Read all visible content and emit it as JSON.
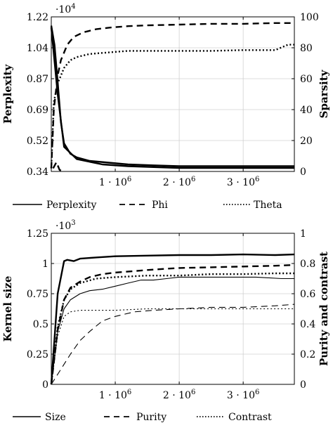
{
  "chart_data": [
    {
      "type": "line",
      "multiplier_label": "·10",
      "multiplier_exp": "4",
      "ylabel": "Perplexity",
      "y2label": "Sparsity",
      "ylim": [
        0.34,
        1.22
      ],
      "y2lim": [
        0,
        100
      ],
      "xlim": [
        0,
        3800000
      ],
      "yticks": [
        "0.34",
        "0.52",
        "0.69",
        "0.87",
        "1.04",
        "1.22"
      ],
      "y2ticks": [
        "0",
        "20",
        "40",
        "60",
        "80",
        "100"
      ],
      "xticks": [
        {
          "label": "1 · 10",
          "exp": "6",
          "v": 1000000
        },
        {
          "label": "2 · 10",
          "exp": "6",
          "v": 2000000
        },
        {
          "label": "3 · 10",
          "exp": "6",
          "v": 3000000
        }
      ],
      "grid": true,
      "series": [
        {
          "name": "Perplexity",
          "style": "solid",
          "axis": "left",
          "x": [
            0,
            50000,
            100000,
            150000,
            200000,
            300000,
            400000,
            600000,
            900000,
            1200000,
            1600000,
            2000000,
            2500000,
            3000000,
            3500000,
            3800000
          ],
          "y": [
            1.17,
            1.06,
            0.85,
            0.62,
            0.5,
            0.44,
            0.42,
            0.4,
            0.39,
            0.38,
            0.375,
            0.37,
            0.37,
            0.37,
            0.37,
            0.37
          ]
        },
        {
          "name": "Phi",
          "style": "dashed",
          "axis": "right",
          "x": [
            0,
            40000,
            100000,
            150000,
            250000,
            350000,
            500000,
            700000,
            900000,
            1200000,
            1500000,
            2000000,
            2500000,
            3000000,
            3500000,
            3800000
          ],
          "y": [
            2,
            40,
            62,
            72,
            82,
            87,
            90,
            92,
            93,
            94,
            94.5,
            95,
            95.5,
            95.5,
            96,
            96
          ]
        },
        {
          "name": "Theta",
          "style": "dotted",
          "axis": "right",
          "x": [
            0,
            40000,
            100000,
            200000,
            300000,
            400000,
            600000,
            900000,
            1200000,
            1500000,
            2000000,
            2500000,
            3000000,
            3500000,
            3700000,
            3800000
          ],
          "y": [
            2,
            45,
            57,
            67,
            72,
            74,
            76,
            77,
            78,
            78,
            78,
            78,
            78.5,
            78.5,
            82,
            82
          ]
        }
      ],
      "extra_series": [
        {
          "style": "solid",
          "axis": "left",
          "x": [
            0,
            100000,
            200000,
            400000,
            800000,
            1200000,
            2000000,
            3000000,
            3800000
          ],
          "y": [
            1.16,
            0.78,
            0.48,
            0.41,
            0.38,
            0.37,
            0.36,
            0.36,
            0.36
          ]
        },
        {
          "style": "dashed",
          "axis": "right",
          "x": [
            30000,
            80000,
            130000,
            180000
          ],
          "y": [
            2,
            6,
            1,
            0
          ]
        }
      ]
    },
    {
      "type": "line",
      "multiplier_label": "·10",
      "multiplier_exp": "3",
      "ylabel": "Kernel size",
      "y2label": "Purity and contrast",
      "ylim": [
        0,
        1.25
      ],
      "y2lim": [
        0,
        1
      ],
      "xlim": [
        0,
        3800000
      ],
      "yticks": [
        "0",
        "0.25",
        "0.5",
        "0.75",
        "1",
        "1.25"
      ],
      "y2ticks": [
        "0",
        "0.2",
        "0.4",
        "0.6",
        "0.8",
        "1"
      ],
      "xticks": [
        {
          "label": "1 · 10",
          "exp": "6",
          "v": 1000000
        },
        {
          "label": "2 · 10",
          "exp": "6",
          "v": 2000000
        },
        {
          "label": "3 · 10",
          "exp": "6",
          "v": 3000000
        }
      ],
      "grid": true,
      "series": [
        {
          "name": "Size",
          "style": "solid",
          "axis": "left",
          "x": [
            0,
            100000,
            200000,
            250000,
            350000,
            450000,
            700000,
            1000000,
            1500000,
            2000000,
            2500000,
            3000000,
            3500000,
            3800000
          ],
          "y": [
            0,
            0.75,
            1.02,
            1.03,
            1.02,
            1.04,
            1.05,
            1.06,
            1.065,
            1.07,
            1.07,
            1.075,
            1.07,
            1.075
          ]
        },
        {
          "name": "Purity",
          "style": "dashed",
          "axis": "right",
          "x": [
            0,
            100000,
            200000,
            300000,
            450000,
            600000,
            800000,
            1000000,
            1300000,
            1600000,
            2000000,
            2500000,
            3000000,
            3500000,
            3800000
          ],
          "y": [
            0,
            0.36,
            0.56,
            0.64,
            0.68,
            0.71,
            0.73,
            0.74,
            0.75,
            0.76,
            0.77,
            0.775,
            0.78,
            0.785,
            0.79
          ]
        },
        {
          "name": "Contrast",
          "style": "dotted",
          "axis": "right",
          "x": [
            0,
            100000,
            200000,
            300000,
            450000,
            700000,
            1000000,
            1500000,
            2000000,
            2500000,
            3000000,
            3500000,
            3800000
          ],
          "y": [
            0,
            0.38,
            0.56,
            0.63,
            0.67,
            0.7,
            0.71,
            0.72,
            0.72,
            0.73,
            0.73,
            0.735,
            0.735
          ]
        }
      ],
      "extra_series": [
        {
          "style": "solid-thin",
          "axis": "right",
          "x": [
            0,
            100000,
            200000,
            300000,
            450000,
            600000,
            800000,
            1000000,
            1200000,
            1400000,
            1600000,
            1800000,
            2000000,
            2400000,
            2800000,
            3200000,
            3600000,
            3800000
          ],
          "y": [
            0,
            0.35,
            0.5,
            0.56,
            0.6,
            0.62,
            0.63,
            0.65,
            0.67,
            0.69,
            0.69,
            0.7,
            0.71,
            0.71,
            0.71,
            0.71,
            0.7,
            0.7
          ]
        },
        {
          "style": "dashed-thin",
          "axis": "right",
          "x": [
            0,
            150000,
            300000,
            450000,
            600000,
            800000,
            1000000,
            1300000,
            1600000,
            2000000,
            2500000,
            3000000,
            3500000,
            3800000
          ],
          "y": [
            0,
            0.1,
            0.2,
            0.29,
            0.35,
            0.42,
            0.45,
            0.48,
            0.49,
            0.5,
            0.51,
            0.51,
            0.52,
            0.53
          ]
        },
        {
          "style": "dotted-thin",
          "axis": "right",
          "x": [
            0,
            100000,
            200000,
            300000,
            450000,
            700000,
            1000000,
            1500000,
            2000000,
            2500000,
            3000000,
            3500000,
            3800000
          ],
          "y": [
            0,
            0.32,
            0.45,
            0.48,
            0.49,
            0.49,
            0.49,
            0.5,
            0.5,
            0.5,
            0.5,
            0.5,
            0.5
          ]
        }
      ]
    }
  ]
}
